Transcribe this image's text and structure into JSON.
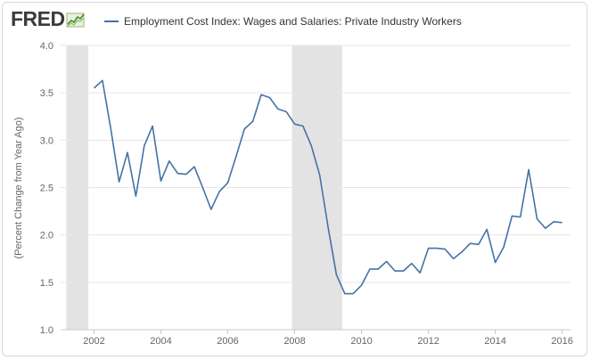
{
  "branding": {
    "logo_text": "FRED"
  },
  "colors": {
    "series": "#4572a7",
    "recession": "#e3e3e3",
    "grid": "#e6e6e6",
    "logo": "#3b3b3b"
  },
  "chart_data": {
    "type": "line",
    "title": "",
    "legend": [
      "Employment Cost Index: Wages and Salaries: Private Industry Workers"
    ],
    "legend_position": "top-left",
    "ylabel": "(Percent Change from Year Ago)",
    "xlabel": "",
    "ylim": [
      1.0,
      4.0
    ],
    "yticks": [
      "1.0",
      "1.5",
      "2.0",
      "2.5",
      "3.0",
      "3.5",
      "4.0"
    ],
    "xlim": [
      2001.0,
      2016.25
    ],
    "xticks": [
      "2002",
      "2004",
      "2006",
      "2008",
      "2010",
      "2012",
      "2014",
      "2016"
    ],
    "grid": "horizontal",
    "recessions": [
      [
        2001.17,
        2001.83
      ],
      [
        2007.92,
        2009.42
      ]
    ],
    "series": [
      {
        "name": "Employment Cost Index: Wages and Salaries: Private Industry Workers",
        "x": [
          2002.0,
          2002.25,
          2002.5,
          2002.75,
          2003.0,
          2003.25,
          2003.5,
          2003.75,
          2004.0,
          2004.25,
          2004.5,
          2004.75,
          2005.0,
          2005.25,
          2005.5,
          2005.75,
          2006.0,
          2006.25,
          2006.5,
          2006.75,
          2007.0,
          2007.25,
          2007.5,
          2007.75,
          2008.0,
          2008.25,
          2008.5,
          2008.75,
          2009.0,
          2009.25,
          2009.5,
          2009.75,
          2010.0,
          2010.25,
          2010.5,
          2010.75,
          2011.0,
          2011.25,
          2011.5,
          2011.75,
          2012.0,
          2012.25,
          2012.5,
          2012.75,
          2013.0,
          2013.25,
          2013.5,
          2013.75,
          2014.0,
          2014.25,
          2014.5,
          2014.75,
          2015.0,
          2015.25,
          2015.5,
          2015.75,
          2016.0
        ],
        "y": [
          3.55,
          3.63,
          3.12,
          2.56,
          2.87,
          2.41,
          2.94,
          3.15,
          2.57,
          2.78,
          2.65,
          2.64,
          2.72,
          2.5,
          2.27,
          2.46,
          2.55,
          2.83,
          3.12,
          3.2,
          3.48,
          3.45,
          3.33,
          3.3,
          3.17,
          3.15,
          2.94,
          2.63,
          2.08,
          1.58,
          1.38,
          1.38,
          1.47,
          1.64,
          1.64,
          1.72,
          1.62,
          1.62,
          1.7,
          1.6,
          1.86,
          1.86,
          1.85,
          1.75,
          1.82,
          1.91,
          1.9,
          2.06,
          1.71,
          1.87,
          2.2,
          2.19,
          2.69,
          2.17,
          2.07,
          2.14,
          2.13
        ]
      }
    ]
  }
}
